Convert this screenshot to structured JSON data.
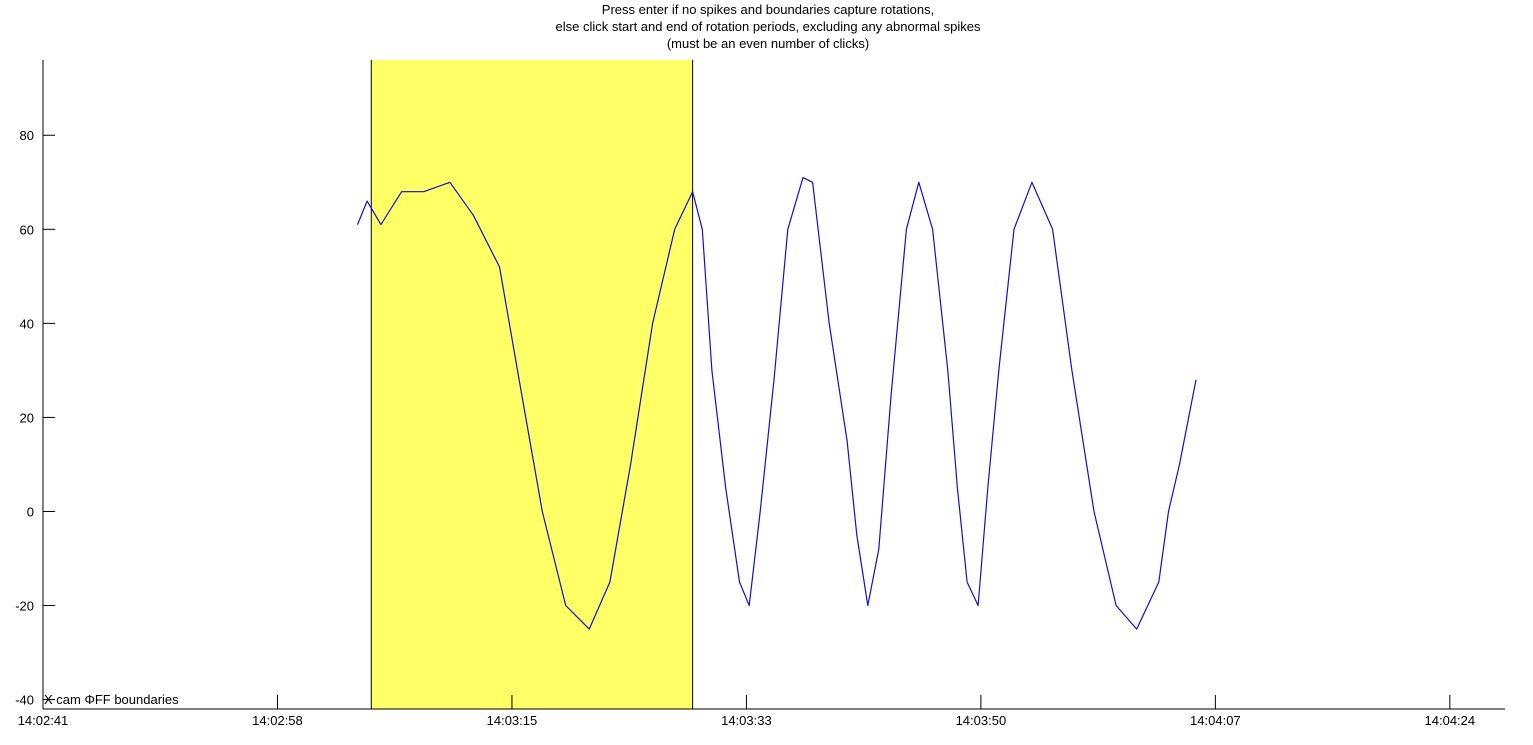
{
  "instructions": [
    "Press enter if no spikes and boundaries capture rotations,",
    "else click start and end of rotation periods, excluding any abnormal spikes",
    "(must be an even number of clicks)"
  ],
  "chart_data": {
    "type": "line",
    "title": "",
    "corner_label": "X cam ΦFF boundaries",
    "x_unit": "seconds since 14:02:41",
    "x_ticks": [
      {
        "value": 0,
        "label": "14:02:41"
      },
      {
        "value": 17,
        "label": "14:02:58"
      },
      {
        "value": 34,
        "label": "14:03:15"
      },
      {
        "value": 51,
        "label": "14:03:33"
      },
      {
        "value": 68,
        "label": "14:03:50"
      },
      {
        "value": 85,
        "label": "14:04:07"
      },
      {
        "value": 102,
        "label": "14:04:24"
      }
    ],
    "xlim": [
      0,
      106
    ],
    "ylim": [
      -42,
      96
    ],
    "y_ticks": [
      -40,
      -20,
      0,
      20,
      40,
      60,
      80
    ],
    "selection": {
      "start": 23.8,
      "end": 47.1,
      "color": "#ffff66"
    },
    "grid": false,
    "series": [
      {
        "color": "#1010cc",
        "x": [
          22.8,
          23.5,
          24.5,
          26.0,
          27.6,
          29.5,
          31.2,
          33.1,
          34.7,
          36.2,
          37.9,
          39.6,
          41.1,
          42.6,
          44.2,
          45.8,
          47.1,
          47.8,
          48.5,
          49.5,
          50.5,
          51.2,
          52.0,
          53.0,
          54.0,
          55.1,
          55.8,
          57.0,
          58.3,
          59.0,
          59.8,
          60.6,
          61.5,
          62.6,
          63.5,
          64.5,
          65.6,
          66.3,
          67.0,
          67.8,
          68.5,
          69.3,
          70.4,
          71.7,
          73.2,
          74.6,
          76.2,
          77.8,
          79.3,
          80.9,
          81.6,
          82.4,
          83.6
        ],
        "y": [
          61,
          66,
          61,
          68,
          68,
          70,
          63,
          52,
          25,
          0,
          -20,
          -25,
          -15,
          10,
          40,
          60,
          68,
          60,
          30,
          5,
          -15,
          -20,
          0,
          28,
          60,
          71,
          70,
          40,
          15,
          -5,
          -20,
          -8,
          25,
          60,
          70,
          60,
          30,
          5,
          -15,
          -20,
          5,
          30,
          60,
          70,
          60,
          30,
          0,
          -20,
          -25,
          -15,
          0,
          10,
          28
        ]
      }
    ]
  }
}
